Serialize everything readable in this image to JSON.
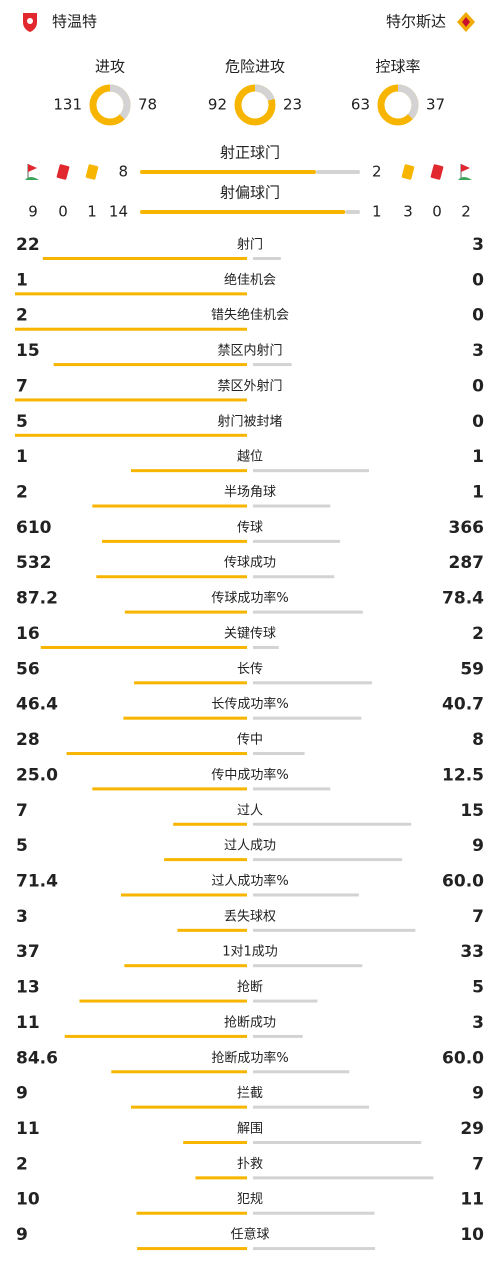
{
  "home": {
    "name": "特温特"
  },
  "away": {
    "name": "特尔斯达"
  },
  "summary": [
    {
      "label": "进攻",
      "values": [
        131,
        78
      ]
    },
    {
      "label": "危险进攻",
      "values": [
        92,
        23
      ]
    },
    {
      "label": "控球率",
      "values": [
        63,
        37
      ]
    }
  ],
  "shots": [
    {
      "label": "射正球门",
      "values": [
        8,
        2
      ]
    },
    {
      "label": "射偏球门",
      "values": [
        14,
        1
      ]
    }
  ],
  "discipline": {
    "home": {
      "corners": 9,
      "red_cards": 0,
      "yellow_cards": 1
    },
    "away": {
      "yellow_cards": 3,
      "red_cards": 0,
      "corners": 2
    }
  },
  "stats": [
    {
      "label": "射门",
      "values": [
        22,
        3
      ]
    },
    {
      "label": "绝佳机会",
      "values": [
        1,
        0
      ]
    },
    {
      "label": "错失绝佳机会",
      "values": [
        2,
        0
      ]
    },
    {
      "label": "禁区内射门",
      "values": [
        15,
        3
      ]
    },
    {
      "label": "禁区外射门",
      "values": [
        7,
        0
      ]
    },
    {
      "label": "射门被封堵",
      "values": [
        5,
        0
      ]
    },
    {
      "label": "越位",
      "values": [
        1,
        1
      ]
    },
    {
      "label": "半场角球",
      "values": [
        2,
        1
      ]
    },
    {
      "label": "传球",
      "values": [
        610,
        366
      ]
    },
    {
      "label": "传球成功",
      "values": [
        532,
        287
      ]
    },
    {
      "label": "传球成功率%",
      "values": [
        87.2,
        78.4
      ]
    },
    {
      "label": "关键传球",
      "values": [
        16,
        2
      ]
    },
    {
      "label": "长传",
      "values": [
        56,
        59
      ]
    },
    {
      "label": "长传成功率%",
      "values": [
        46.4,
        40.7
      ]
    },
    {
      "label": "传中",
      "values": [
        28,
        8
      ]
    },
    {
      "label": "传中成功率%",
      "values": [
        25.0,
        12.5
      ],
      "value_labels": [
        "25.0",
        "12.5"
      ]
    },
    {
      "label": "过人",
      "values": [
        7,
        15
      ]
    },
    {
      "label": "过人成功",
      "values": [
        5,
        9
      ]
    },
    {
      "label": "过人成功率%",
      "values": [
        71.4,
        60.0
      ],
      "value_labels": [
        "71.4",
        "60.0"
      ]
    },
    {
      "label": "丢失球权",
      "values": [
        3,
        7
      ]
    },
    {
      "label": "1对1成功",
      "values": [
        37,
        33
      ]
    },
    {
      "label": "抢断",
      "values": [
        13,
        5
      ]
    },
    {
      "label": "抢断成功",
      "values": [
        11,
        3
      ]
    },
    {
      "label": "抢断成功率%",
      "values": [
        84.6,
        60.0
      ],
      "value_labels": [
        "84.6",
        "60.0"
      ]
    },
    {
      "label": "拦截",
      "values": [
        9,
        9
      ]
    },
    {
      "label": "解围",
      "values": [
        11,
        29
      ]
    },
    {
      "label": "扑救",
      "values": [
        2,
        7
      ]
    },
    {
      "label": "犯规",
      "values": [
        10,
        11
      ]
    },
    {
      "label": "任意球",
      "values": [
        9,
        10
      ]
    }
  ]
}
